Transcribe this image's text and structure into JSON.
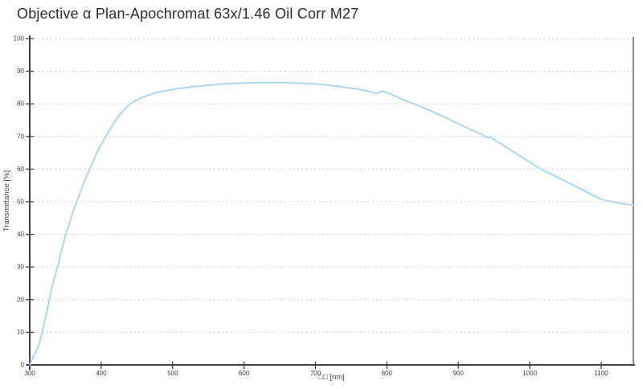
{
  "title": "Objective α Plan-Apochromat 63x/1.46 Oil Corr M27",
  "colors": {
    "curve": "#a8d6f0",
    "grid": "#c8c8c8",
    "axis": "#414141",
    "border": "#6b6b6b",
    "tick_text": "#3d3d3d",
    "title_text": "#2b2b2b",
    "background": "#ffffff"
  },
  "chart_data": {
    "type": "line",
    "title": "Objective α Plan-Apochromat 63x/1.46 Oil Corr M27",
    "xlabel": "□□ [nm]",
    "ylabel": "Transmittance [%]",
    "xlim": [
      300,
      1145
    ],
    "ylim": [
      0,
      100
    ],
    "xticks": [
      300,
      400,
      500,
      600,
      700,
      800,
      900,
      1000,
      1100
    ],
    "yticks": [
      0,
      10,
      20,
      30,
      40,
      50,
      60,
      70,
      80,
      90,
      100
    ],
    "grid": "horizontal-dotted",
    "legend": "none",
    "series": [
      {
        "name": "Transmittance",
        "color": "#a8d6f0",
        "points": [
          [
            300,
            0
          ],
          [
            303,
            1.5
          ],
          [
            306,
            3
          ],
          [
            310,
            4.5
          ],
          [
            314,
            7
          ],
          [
            318,
            10.5
          ],
          [
            322,
            14.5
          ],
          [
            326,
            18.5
          ],
          [
            330,
            23
          ],
          [
            335,
            27
          ],
          [
            340,
            31
          ],
          [
            345,
            35.5
          ],
          [
            350,
            39.5
          ],
          [
            355,
            43
          ],
          [
            360,
            46.5
          ],
          [
            365,
            49.5
          ],
          [
            370,
            52.5
          ],
          [
            375,
            55.5
          ],
          [
            380,
            58
          ],
          [
            385,
            60.5
          ],
          [
            390,
            63
          ],
          [
            395,
            65.5
          ],
          [
            400,
            67.5
          ],
          [
            405,
            69.5
          ],
          [
            410,
            71.3
          ],
          [
            415,
            73.2
          ],
          [
            420,
            75
          ],
          [
            425,
            76.4
          ],
          [
            430,
            77.7
          ],
          [
            435,
            78.9
          ],
          [
            440,
            79.8
          ],
          [
            445,
            80.6
          ],
          [
            450,
            81.2
          ],
          [
            460,
            82.2
          ],
          [
            470,
            83
          ],
          [
            480,
            83.6
          ],
          [
            490,
            84
          ],
          [
            500,
            84.4
          ],
          [
            510,
            84.7
          ],
          [
            520,
            85
          ],
          [
            530,
            85.3
          ],
          [
            540,
            85.5
          ],
          [
            550,
            85.7
          ],
          [
            560,
            85.9
          ],
          [
            570,
            86.1
          ],
          [
            580,
            86.2
          ],
          [
            590,
            86.3
          ],
          [
            600,
            86.4
          ],
          [
            610,
            86.45
          ],
          [
            620,
            86.5
          ],
          [
            635,
            86.5
          ],
          [
            650,
            86.5
          ],
          [
            660,
            86.45
          ],
          [
            670,
            86.4
          ],
          [
            680,
            86.3
          ],
          [
            690,
            86.2
          ],
          [
            700,
            86.1
          ],
          [
            710,
            85.9
          ],
          [
            720,
            85.7
          ],
          [
            730,
            85.4
          ],
          [
            740,
            85.1
          ],
          [
            750,
            84.8
          ],
          [
            760,
            84.5
          ],
          [
            770,
            84.1
          ],
          [
            775,
            83.8
          ],
          [
            780,
            83.4
          ],
          [
            785,
            83.3
          ],
          [
            788,
            83.2
          ],
          [
            791,
            83.8
          ],
          [
            795,
            83.9
          ],
          [
            800,
            83.4
          ],
          [
            805,
            83
          ],
          [
            810,
            82.5
          ],
          [
            815,
            82
          ],
          [
            820,
            81.5
          ],
          [
            825,
            81.1
          ],
          [
            830,
            80.6
          ],
          [
            835,
            80.2
          ],
          [
            840,
            79.8
          ],
          [
            850,
            78.9
          ],
          [
            860,
            78
          ],
          [
            870,
            77
          ],
          [
            880,
            76
          ],
          [
            890,
            74.9
          ],
          [
            900,
            73.9
          ],
          [
            910,
            72.9
          ],
          [
            920,
            71.9
          ],
          [
            930,
            70.9
          ],
          [
            935,
            70.4
          ],
          [
            940,
            69.6
          ],
          [
            944,
            69.8
          ],
          [
            948,
            69.4
          ],
          [
            955,
            68.4
          ],
          [
            965,
            67
          ],
          [
            975,
            65.6
          ],
          [
            985,
            64.2
          ],
          [
            995,
            62.8
          ],
          [
            1005,
            61.5
          ],
          [
            1014,
            60.2
          ],
          [
            1025,
            59
          ],
          [
            1040,
            57.4
          ],
          [
            1055,
            55.7
          ],
          [
            1070,
            54.1
          ],
          [
            1085,
            52.4
          ],
          [
            1100,
            50.8
          ],
          [
            1110,
            50.2
          ],
          [
            1120,
            49.8
          ],
          [
            1130,
            49.4
          ],
          [
            1140,
            49.1
          ],
          [
            1145,
            49
          ]
        ]
      }
    ]
  }
}
